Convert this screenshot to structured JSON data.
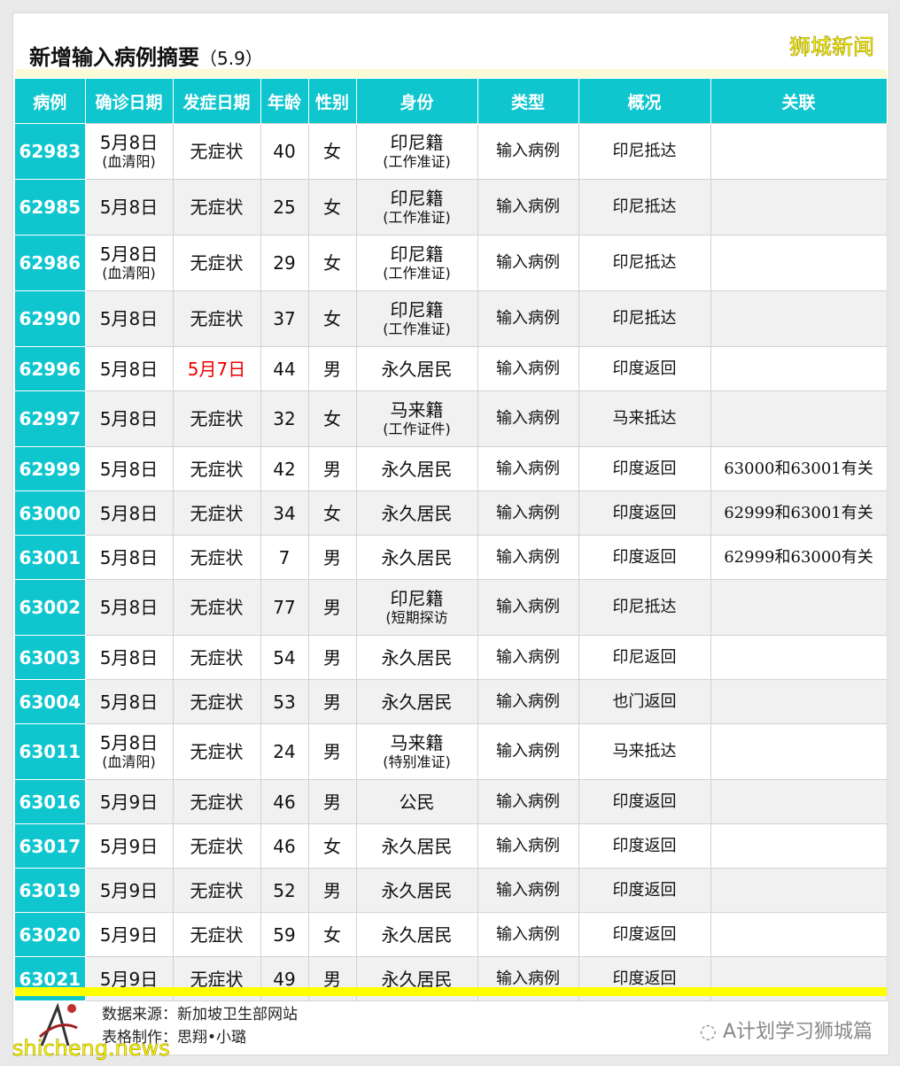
{
  "title": "新增输入病例摘要",
  "title_date": "（5.9）",
  "brand": "狮城新闻",
  "headers": [
    "病例",
    "确诊日期",
    "发症日期",
    "年龄",
    "性别",
    "身份",
    "类型",
    "概况",
    "关联"
  ],
  "rows": [
    {
      "id": "62983",
      "confirm": "5月8日",
      "confirm_sub": "(血清阳)",
      "onset": "无症状",
      "age": "40",
      "sex": "女",
      "identity": "印尼籍",
      "identity_sub": "(工作准证)",
      "type": "输入病例",
      "summary": "印尼抵达",
      "link": ""
    },
    {
      "id": "62985",
      "confirm": "5月8日",
      "confirm_sub": "",
      "onset": "无症状",
      "age": "25",
      "sex": "女",
      "identity": "印尼籍",
      "identity_sub": "(工作准证)",
      "type": "输入病例",
      "summary": "印尼抵达",
      "link": ""
    },
    {
      "id": "62986",
      "confirm": "5月8日",
      "confirm_sub": "(血清阳)",
      "onset": "无症状",
      "age": "29",
      "sex": "女",
      "identity": "印尼籍",
      "identity_sub": "(工作准证)",
      "type": "输入病例",
      "summary": "印尼抵达",
      "link": ""
    },
    {
      "id": "62990",
      "confirm": "5月8日",
      "confirm_sub": "",
      "onset": "无症状",
      "age": "37",
      "sex": "女",
      "identity": "印尼籍",
      "identity_sub": "(工作准证)",
      "type": "输入病例",
      "summary": "印尼抵达",
      "link": ""
    },
    {
      "id": "62996",
      "confirm": "5月8日",
      "confirm_sub": "",
      "onset": "5月7日",
      "onset_red": true,
      "age": "44",
      "sex": "男",
      "identity": "永久居民",
      "identity_sub": "",
      "type": "输入病例",
      "summary": "印度返回",
      "link": ""
    },
    {
      "id": "62997",
      "confirm": "5月8日",
      "confirm_sub": "",
      "onset": "无症状",
      "age": "32",
      "sex": "女",
      "identity": "马来籍",
      "identity_sub": "(工作证件)",
      "type": "输入病例",
      "summary": "马来抵达",
      "link": ""
    },
    {
      "id": "62999",
      "confirm": "5月8日",
      "confirm_sub": "",
      "onset": "无症状",
      "age": "42",
      "sex": "男",
      "identity": "永久居民",
      "identity_sub": "",
      "type": "输入病例",
      "summary": "印度返回",
      "link": "63000和63001有关"
    },
    {
      "id": "63000",
      "confirm": "5月8日",
      "confirm_sub": "",
      "onset": "无症状",
      "age": "34",
      "sex": "女",
      "identity": "永久居民",
      "identity_sub": "",
      "type": "输入病例",
      "summary": "印度返回",
      "link": "62999和63001有关"
    },
    {
      "id": "63001",
      "confirm": "5月8日",
      "confirm_sub": "",
      "onset": "无症状",
      "age": "7",
      "sex": "男",
      "identity": "永久居民",
      "identity_sub": "",
      "type": "输入病例",
      "summary": "印度返回",
      "link": "62999和63000有关"
    },
    {
      "id": "63002",
      "confirm": "5月8日",
      "confirm_sub": "",
      "onset": "无症状",
      "age": "77",
      "sex": "男",
      "identity": "印尼籍",
      "identity_sub": "(短期探访",
      "type": "输入病例",
      "summary": "印尼抵达",
      "link": ""
    },
    {
      "id": "63003",
      "confirm": "5月8日",
      "confirm_sub": "",
      "onset": "无症状",
      "age": "54",
      "sex": "男",
      "identity": "永久居民",
      "identity_sub": "",
      "type": "输入病例",
      "summary": "印尼返回",
      "link": ""
    },
    {
      "id": "63004",
      "confirm": "5月8日",
      "confirm_sub": "",
      "onset": "无症状",
      "age": "53",
      "sex": "男",
      "identity": "永久居民",
      "identity_sub": "",
      "type": "输入病例",
      "summary": "也门返回",
      "link": ""
    },
    {
      "id": "63011",
      "confirm": "5月8日",
      "confirm_sub": "(血清阳)",
      "onset": "无症状",
      "age": "24",
      "sex": "男",
      "identity": "马来籍",
      "identity_sub": "(特别准证)",
      "type": "输入病例",
      "summary": "马来抵达",
      "link": ""
    },
    {
      "id": "63016",
      "confirm": "5月9日",
      "confirm_sub": "",
      "onset": "无症状",
      "age": "46",
      "sex": "男",
      "identity": "公民",
      "identity_sub": "",
      "type": "输入病例",
      "summary": "印度返回",
      "link": ""
    },
    {
      "id": "63017",
      "confirm": "5月9日",
      "confirm_sub": "",
      "onset": "无症状",
      "age": "46",
      "sex": "女",
      "identity": "永久居民",
      "identity_sub": "",
      "type": "输入病例",
      "summary": "印度返回",
      "link": ""
    },
    {
      "id": "63019",
      "confirm": "5月9日",
      "confirm_sub": "",
      "onset": "无症状",
      "age": "52",
      "sex": "男",
      "identity": "永久居民",
      "identity_sub": "",
      "type": "输入病例",
      "summary": "印度返回",
      "link": ""
    },
    {
      "id": "63020",
      "confirm": "5月9日",
      "confirm_sub": "",
      "onset": "无症状",
      "age": "59",
      "sex": "女",
      "identity": "永久居民",
      "identity_sub": "",
      "type": "输入病例",
      "summary": "印度返回",
      "link": ""
    },
    {
      "id": "63021",
      "confirm": "5月9日",
      "confirm_sub": "",
      "onset": "无症状",
      "age": "49",
      "sex": "男",
      "identity": "永久居民",
      "identity_sub": "",
      "type": "输入病例",
      "summary": "印度返回",
      "link": ""
    }
  ],
  "footer": {
    "source": "数据来源：新加坡卫生部网站",
    "maker": "表格制作：思翔•小璐",
    "wechat": "A计划学习狮城篇",
    "site": "shicheng.news"
  },
  "colors": {
    "header": "#0fc6cf",
    "highlight": "#ffff00",
    "red": "#e00000"
  }
}
